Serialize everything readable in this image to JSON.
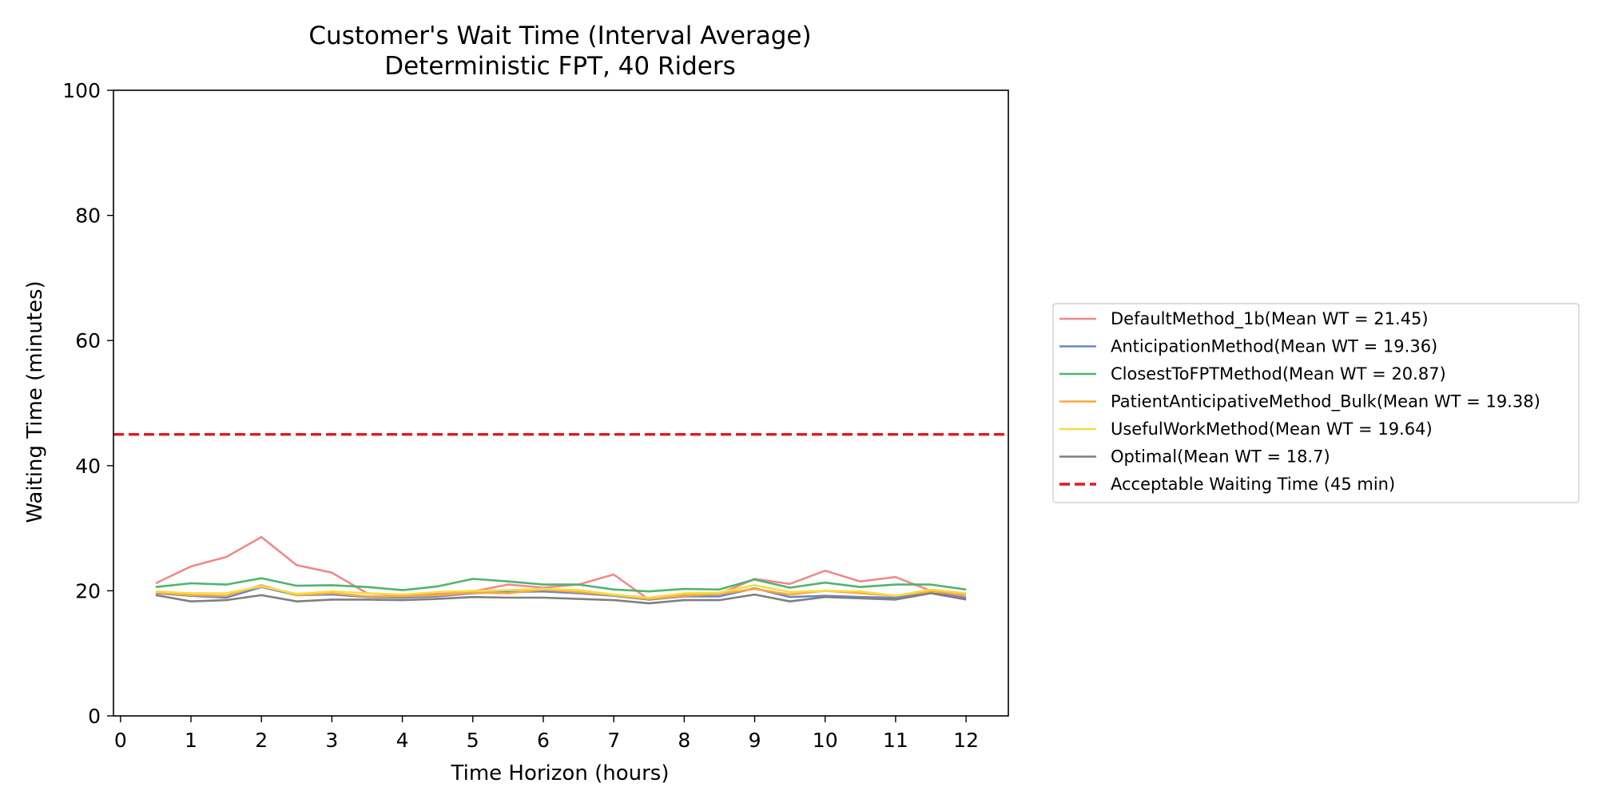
{
  "chart_data": {
    "type": "line",
    "title": "Customer's Wait Time (Interval Average)",
    "subtitle": "Deterministic FPT, 40 Riders",
    "xlabel": "Time Horizon (hours)",
    "ylabel": "Waiting Time (minutes)",
    "xlim": [
      -0.1,
      12.6
    ],
    "ylim": [
      0,
      100
    ],
    "xticks": [
      0,
      1,
      2,
      3,
      4,
      5,
      6,
      7,
      8,
      9,
      10,
      11,
      12
    ],
    "yticks": [
      0,
      20,
      40,
      60,
      80,
      100
    ],
    "grid": false,
    "legend_position": "outside-right",
    "x": [
      0.5,
      1,
      1.5,
      2,
      2.5,
      3,
      3.5,
      4,
      4.5,
      5,
      5.5,
      6,
      6.5,
      7,
      7.5,
      8,
      8.5,
      9,
      9.5,
      10,
      10.5,
      11,
      11.5,
      12
    ],
    "series": [
      {
        "name": "DefaultMethod_1b(Mean WT = 21.45)",
        "color": "#f08a8a",
        "values": [
          21.2,
          23.9,
          25.4,
          28.6,
          24.1,
          22.9,
          19.6,
          19.3,
          19.5,
          19.9,
          21.0,
          20.5,
          21.0,
          22.6,
          18.6,
          19.3,
          19.5,
          21.9,
          21.1,
          23.2,
          21.5,
          22.2,
          20.0,
          19.0
        ]
      },
      {
        "name": "AnticipationMethod(Mean WT = 19.36)",
        "color": "#6b86c8",
        "values": [
          19.6,
          19.2,
          18.9,
          20.6,
          19.3,
          19.4,
          19.0,
          18.9,
          19.1,
          19.6,
          19.8,
          19.9,
          19.6,
          19.2,
          18.6,
          19.1,
          19.1,
          20.4,
          19.0,
          19.2,
          19.0,
          18.9,
          19.7,
          18.8
        ]
      },
      {
        "name": "ClosestToFPTMethod(Mean WT = 20.87)",
        "color": "#4fb56f",
        "values": [
          20.6,
          21.2,
          21.0,
          22.0,
          20.8,
          20.9,
          20.6,
          20.1,
          20.7,
          21.9,
          21.5,
          21.0,
          21.0,
          20.2,
          19.9,
          20.3,
          20.2,
          21.8,
          20.5,
          21.3,
          20.6,
          21.0,
          21.0,
          20.2
        ]
      },
      {
        "name": "PatientAnticipativeMethod_Bulk(Mean WT = 19.38)",
        "color": "#f7a93c",
        "values": [
          19.7,
          19.3,
          19.2,
          20.9,
          19.3,
          19.6,
          19.1,
          19.1,
          19.3,
          19.7,
          19.6,
          20.2,
          19.8,
          19.3,
          18.7,
          19.2,
          19.5,
          20.3,
          19.4,
          20.0,
          19.6,
          19.2,
          19.9,
          19.4
        ]
      },
      {
        "name": "UsefulWorkMethod(Mean WT = 19.64)",
        "color": "#f6dc45",
        "values": [
          19.9,
          19.6,
          19.6,
          20.7,
          19.5,
          19.9,
          19.6,
          19.4,
          19.8,
          20.0,
          20.1,
          20.3,
          20.1,
          19.4,
          18.9,
          19.6,
          19.7,
          20.9,
          19.8,
          20.0,
          19.9,
          19.2,
          20.2,
          19.6
        ]
      },
      {
        "name": "Optimal(Mean WT = 18.7)",
        "color": "#7f7f7f",
        "values": [
          19.3,
          18.3,
          18.5,
          19.3,
          18.3,
          18.6,
          18.6,
          18.5,
          18.7,
          19.0,
          18.9,
          18.9,
          18.7,
          18.5,
          18.0,
          18.5,
          18.5,
          19.4,
          18.3,
          19.0,
          18.8,
          18.6,
          19.6,
          18.6
        ]
      }
    ],
    "reference_line": {
      "name": "Acceptable Waiting Time (45 min)",
      "y": 45,
      "color": "#e31a1c",
      "style": "dashed"
    }
  }
}
